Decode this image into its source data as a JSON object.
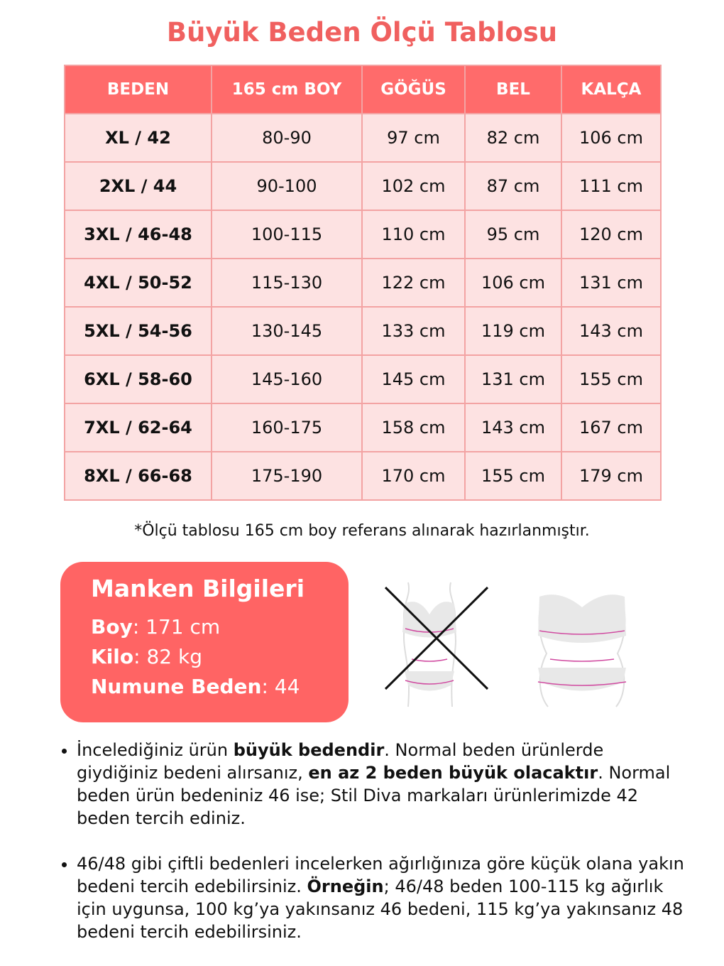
{
  "title": "Büyük Beden Ölçü Tablosu",
  "table": {
    "headers": [
      "BEDEN",
      "165 cm BOY",
      "GÖĞÜS",
      "BEL",
      "KALÇA"
    ],
    "rows": [
      [
        "XL / 42",
        "80-90",
        "97 cm",
        "82 cm",
        "106 cm"
      ],
      [
        "2XL / 44",
        "90-100",
        "102 cm",
        "87 cm",
        "111 cm"
      ],
      [
        "3XL / 46-48",
        "100-115",
        "110 cm",
        "95 cm",
        "120 cm"
      ],
      [
        "4XL / 50-52",
        "115-130",
        "122 cm",
        "106 cm",
        "131 cm"
      ],
      [
        "5XL / 54-56",
        "130-145",
        "133 cm",
        "119 cm",
        "143 cm"
      ],
      [
        "6XL / 58-60",
        "145-160",
        "145 cm",
        "131 cm",
        "155 cm"
      ],
      [
        "7XL / 62-64",
        "160-175",
        "158 cm",
        "143 cm",
        "167 cm"
      ],
      [
        "8XL / 66-68",
        "175-190",
        "170 cm",
        "155 cm",
        "179 cm"
      ]
    ]
  },
  "note": "*Ölçü tablosu 165 cm boy referans alınarak hazırlanmıştır.",
  "model": {
    "heading": "Manken Bilgileri",
    "items": [
      {
        "label": "Boy",
        "value": ": 171 cm"
      },
      {
        "label": "Kilo",
        "value": ": 82 kg"
      },
      {
        "label": "Numune Beden",
        "value": ": 44"
      }
    ]
  },
  "colors": {
    "accent": "#ff6464",
    "header": "#ff6b6b",
    "row": "#fde2e2",
    "title": "#f0605f"
  },
  "bullets": [
    [
      {
        "t": "İncelediğiniz ürün ",
        "b": false
      },
      {
        "t": "büyük bedendir",
        "b": true
      },
      {
        "t": ". Normal beden ürünlerde giydiğiniz bedeni alırsanız, ",
        "b": false
      },
      {
        "t": "en az 2 beden büyük olacaktır",
        "b": true
      },
      {
        "t": ". Normal beden ürün bedeniniz 46 ise; Stil Diva markaları ürünlerimizde 42 beden tercih ediniz.",
        "b": false
      }
    ],
    [
      {
        "t": "46/48 gibi çiftli bedenleri incelerken ağırlığınıza göre küçük olana yakın bedeni tercih edebilirsiniz. ",
        "b": false
      },
      {
        "t": "Örneğin",
        "b": true
      },
      {
        "t": "; 46/48 beden 100-115 kg ağırlık için uygunsa, 100 kg’ya yakınsanız 46 bedeni, 115 kg’ya yakınsanız 48 bedeni tercih edebilirsiniz.",
        "b": false
      }
    ]
  ]
}
